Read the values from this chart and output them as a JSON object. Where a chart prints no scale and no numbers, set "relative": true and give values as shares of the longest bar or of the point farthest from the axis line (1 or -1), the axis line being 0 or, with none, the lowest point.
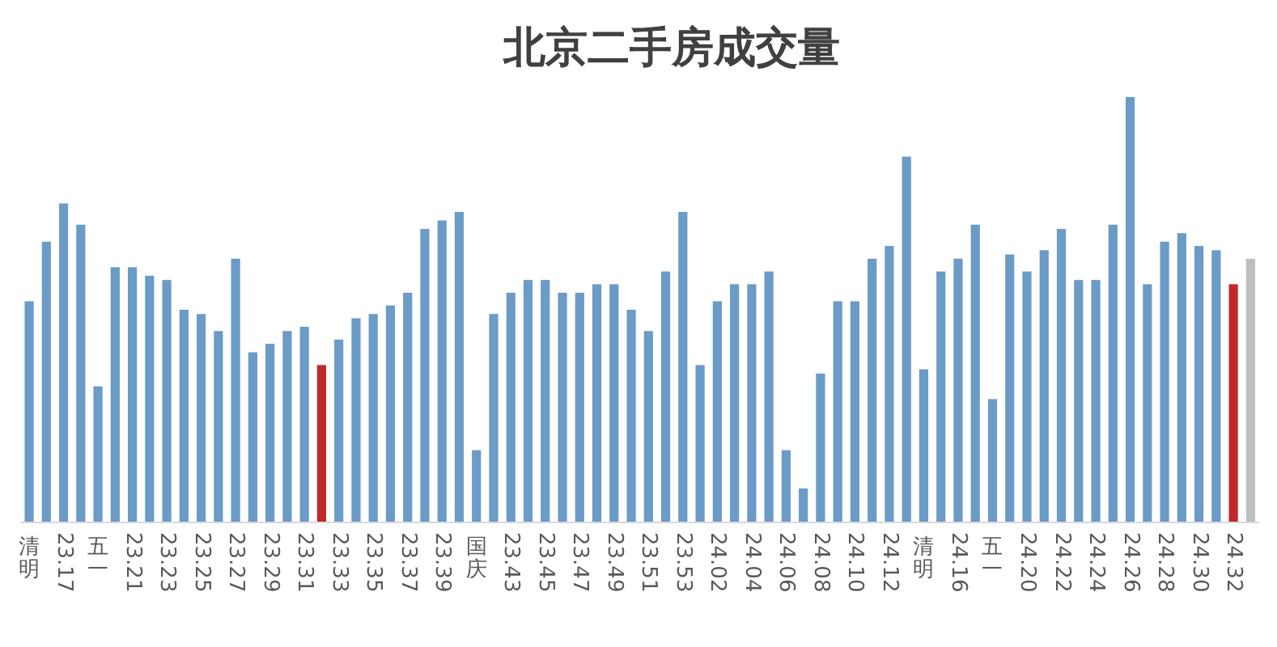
{
  "chart_data": {
    "type": "bar",
    "title": "北京二手房成交量",
    "relative": true,
    "categories": [
      "清明",
      null,
      "23.17",
      null,
      "五一",
      null,
      "23.21",
      null,
      "23.23",
      null,
      "23.25",
      null,
      "23.27",
      null,
      "23.29",
      null,
      "23.31",
      null,
      "23.33",
      null,
      "23.35",
      null,
      "23.37",
      null,
      "23.39",
      null,
      "国庆",
      null,
      "23.43",
      null,
      "23.45",
      null,
      "23.47",
      null,
      "23.49",
      null,
      "23.51",
      null,
      "23.53",
      null,
      "24.02",
      null,
      "24.04",
      null,
      "24.06",
      null,
      "24.08",
      null,
      "24.10",
      null,
      "24.12",
      null,
      "清明",
      null,
      "24.16",
      null,
      "五一",
      null,
      "24.20",
      null,
      "24.22",
      null,
      "24.24",
      null,
      "24.26",
      null,
      "24.28",
      null,
      "24.30",
      null,
      "24.32",
      null
    ],
    "values": [
      0.52,
      0.66,
      0.75,
      0.7,
      0.32,
      0.6,
      0.6,
      0.58,
      0.57,
      0.5,
      0.49,
      0.45,
      0.62,
      0.4,
      0.42,
      0.45,
      0.46,
      0.37,
      0.43,
      0.48,
      0.49,
      0.51,
      0.54,
      0.69,
      0.71,
      0.73,
      0.17,
      0.49,
      0.54,
      0.57,
      0.57,
      0.54,
      0.54,
      0.56,
      0.56,
      0.5,
      0.45,
      0.59,
      0.73,
      0.37,
      0.52,
      0.56,
      0.56,
      0.59,
      0.17,
      0.08,
      0.35,
      0.52,
      0.52,
      0.62,
      0.65,
      0.86,
      0.36,
      0.59,
      0.62,
      0.7,
      0.29,
      0.63,
      0.59,
      0.64,
      0.69,
      0.57,
      0.57,
      0.7,
      1,
      0.56,
      0.66,
      0.68,
      0.65,
      0.64,
      0.56,
      0.62
    ],
    "colors": [
      "#6b9bc7",
      "#6b9bc7",
      "#6b9bc7",
      "#6b9bc7",
      "#6b9bc7",
      "#6b9bc7",
      "#6b9bc7",
      "#6b9bc7",
      "#6b9bc7",
      "#6b9bc7",
      "#6b9bc7",
      "#6b9bc7",
      "#6b9bc7",
      "#6b9bc7",
      "#6b9bc7",
      "#6b9bc7",
      "#6b9bc7",
      "#c0282d",
      "#6b9bc7",
      "#6b9bc7",
      "#6b9bc7",
      "#6b9bc7",
      "#6b9bc7",
      "#6b9bc7",
      "#6b9bc7",
      "#6b9bc7",
      "#6b9bc7",
      "#6b9bc7",
      "#6b9bc7",
      "#6b9bc7",
      "#6b9bc7",
      "#6b9bc7",
      "#6b9bc7",
      "#6b9bc7",
      "#6b9bc7",
      "#6b9bc7",
      "#6b9bc7",
      "#6b9bc7",
      "#6b9bc7",
      "#6b9bc7",
      "#6b9bc7",
      "#6b9bc7",
      "#6b9bc7",
      "#6b9bc7",
      "#6b9bc7",
      "#6b9bc7",
      "#6b9bc7",
      "#6b9bc7",
      "#6b9bc7",
      "#6b9bc7",
      "#6b9bc7",
      "#6b9bc7",
      "#6b9bc7",
      "#6b9bc7",
      "#6b9bc7",
      "#6b9bc7",
      "#6b9bc7",
      "#6b9bc7",
      "#6b9bc7",
      "#6b9bc7",
      "#6b9bc7",
      "#6b9bc7",
      "#6b9bc7",
      "#6b9bc7",
      "#6b9bc7",
      "#6b9bc7",
      "#6b9bc7",
      "#6b9bc7",
      "#6b9bc7",
      "#6b9bc7",
      "#c0282d",
      "#bfbfbf"
    ]
  }
}
